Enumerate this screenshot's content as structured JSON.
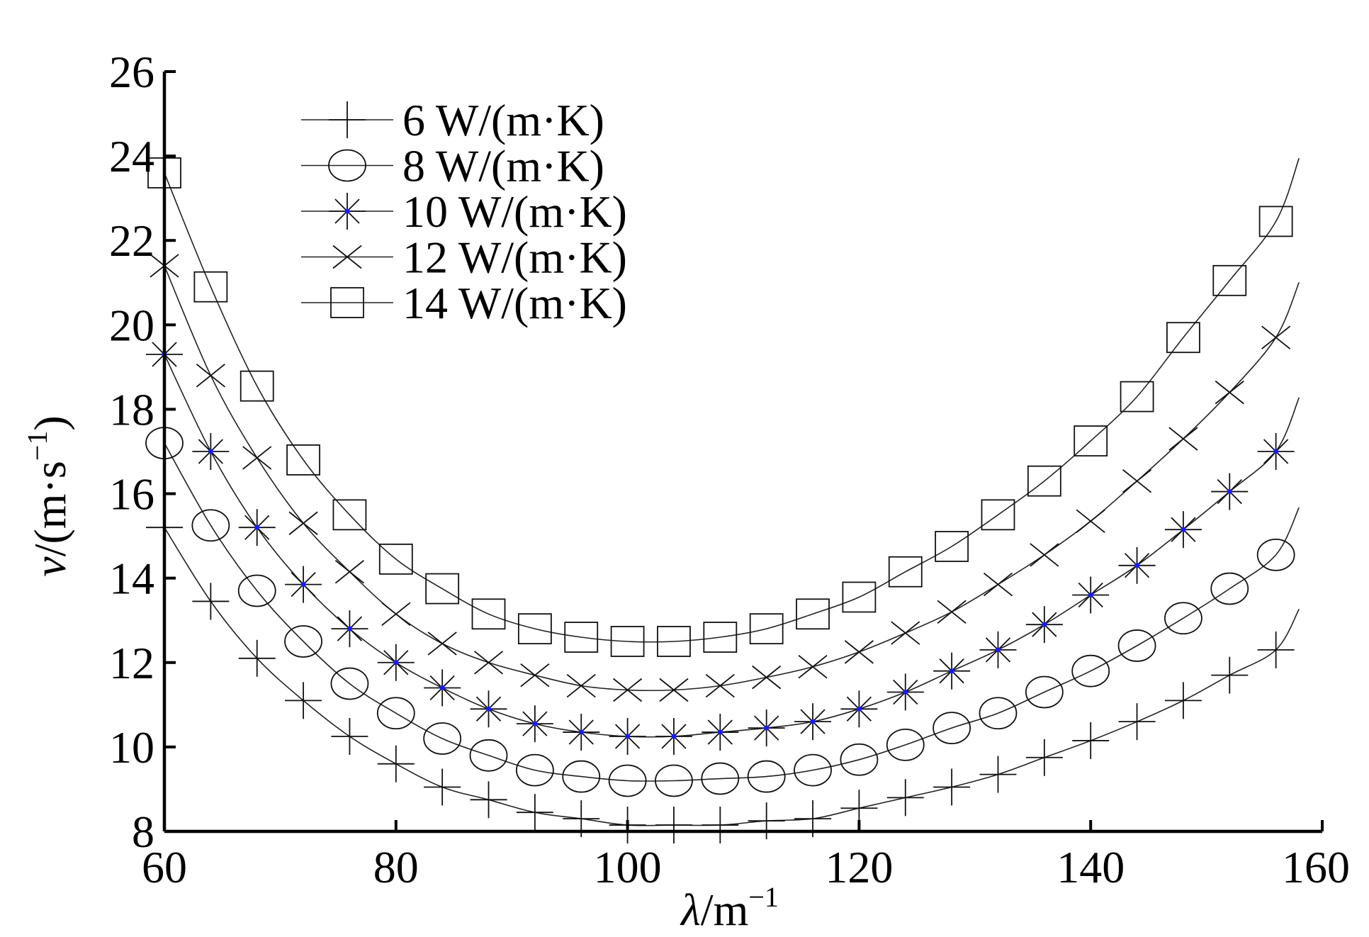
{
  "chart_data": {
    "type": "line",
    "xlabel_var": "λ",
    "xlabel_unit": "/m",
    "xlabel_exp": "−1",
    "ylabel_var": "v",
    "ylabel_unit": "/(m·s",
    "ylabel_exp": "−1",
    "ylabel_close": ")",
    "xlim": [
      60,
      160
    ],
    "ylim": [
      8,
      26
    ],
    "x_ticks": [
      "60",
      "80",
      "100",
      "120",
      "140",
      "160"
    ],
    "y_ticks": [
      "8",
      "10",
      "12",
      "14",
      "16",
      "18",
      "20",
      "22",
      "24",
      "26"
    ],
    "legend_position": "top-left",
    "grid": false,
    "marker_x": [
      60,
      64,
      68,
      72,
      76,
      80,
      84,
      88,
      92,
      96,
      100,
      104,
      108,
      112,
      116,
      120,
      124,
      128,
      132,
      136,
      140,
      144,
      148,
      152,
      156
    ],
    "series": [
      {
        "name": "6 W/(m·K)",
        "marker": "plus",
        "values": [
          15.2,
          13.45,
          12.1,
          11.1,
          10.25,
          9.6,
          9.05,
          8.75,
          8.45,
          8.3,
          8.15,
          8.15,
          8.15,
          8.25,
          8.3,
          8.55,
          8.8,
          9.05,
          9.35,
          9.75,
          10.15,
          10.6,
          11.1,
          11.7,
          12.3
        ]
      },
      {
        "name": "8 W/(m·K)",
        "marker": "circle",
        "values": [
          17.2,
          15.25,
          13.7,
          12.5,
          11.5,
          10.8,
          10.2,
          9.8,
          9.45,
          9.3,
          9.2,
          9.2,
          9.25,
          9.3,
          9.45,
          9.7,
          10.05,
          10.45,
          10.8,
          11.3,
          11.8,
          12.4,
          13.05,
          13.75,
          14.55
        ]
      },
      {
        "name": "10 W/(m·K)",
        "marker": "asterisk",
        "values": [
          19.3,
          17.0,
          15.2,
          13.85,
          12.8,
          12.0,
          11.4,
          10.9,
          10.55,
          10.35,
          10.25,
          10.25,
          10.35,
          10.45,
          10.6,
          10.9,
          11.3,
          11.8,
          12.3,
          12.9,
          13.6,
          14.3,
          15.15,
          16.05,
          17.0
        ]
      },
      {
        "name": "12 W/(m·K)",
        "marker": "cross",
        "values": [
          21.4,
          18.8,
          16.85,
          15.3,
          14.15,
          13.15,
          12.45,
          12.0,
          11.7,
          11.45,
          11.35,
          11.35,
          11.45,
          11.65,
          11.9,
          12.25,
          12.7,
          13.2,
          13.85,
          14.55,
          15.35,
          16.3,
          17.3,
          18.4,
          19.7
        ]
      },
      {
        "name": "14 W/(m·K)",
        "marker": "square",
        "values": [
          23.6,
          20.9,
          18.55,
          16.8,
          15.5,
          14.45,
          13.75,
          13.15,
          12.8,
          12.6,
          12.5,
          12.5,
          12.6,
          12.8,
          13.15,
          13.55,
          14.15,
          14.75,
          15.5,
          16.3,
          17.25,
          18.3,
          19.7,
          21.05,
          22.45
        ]
      }
    ]
  }
}
